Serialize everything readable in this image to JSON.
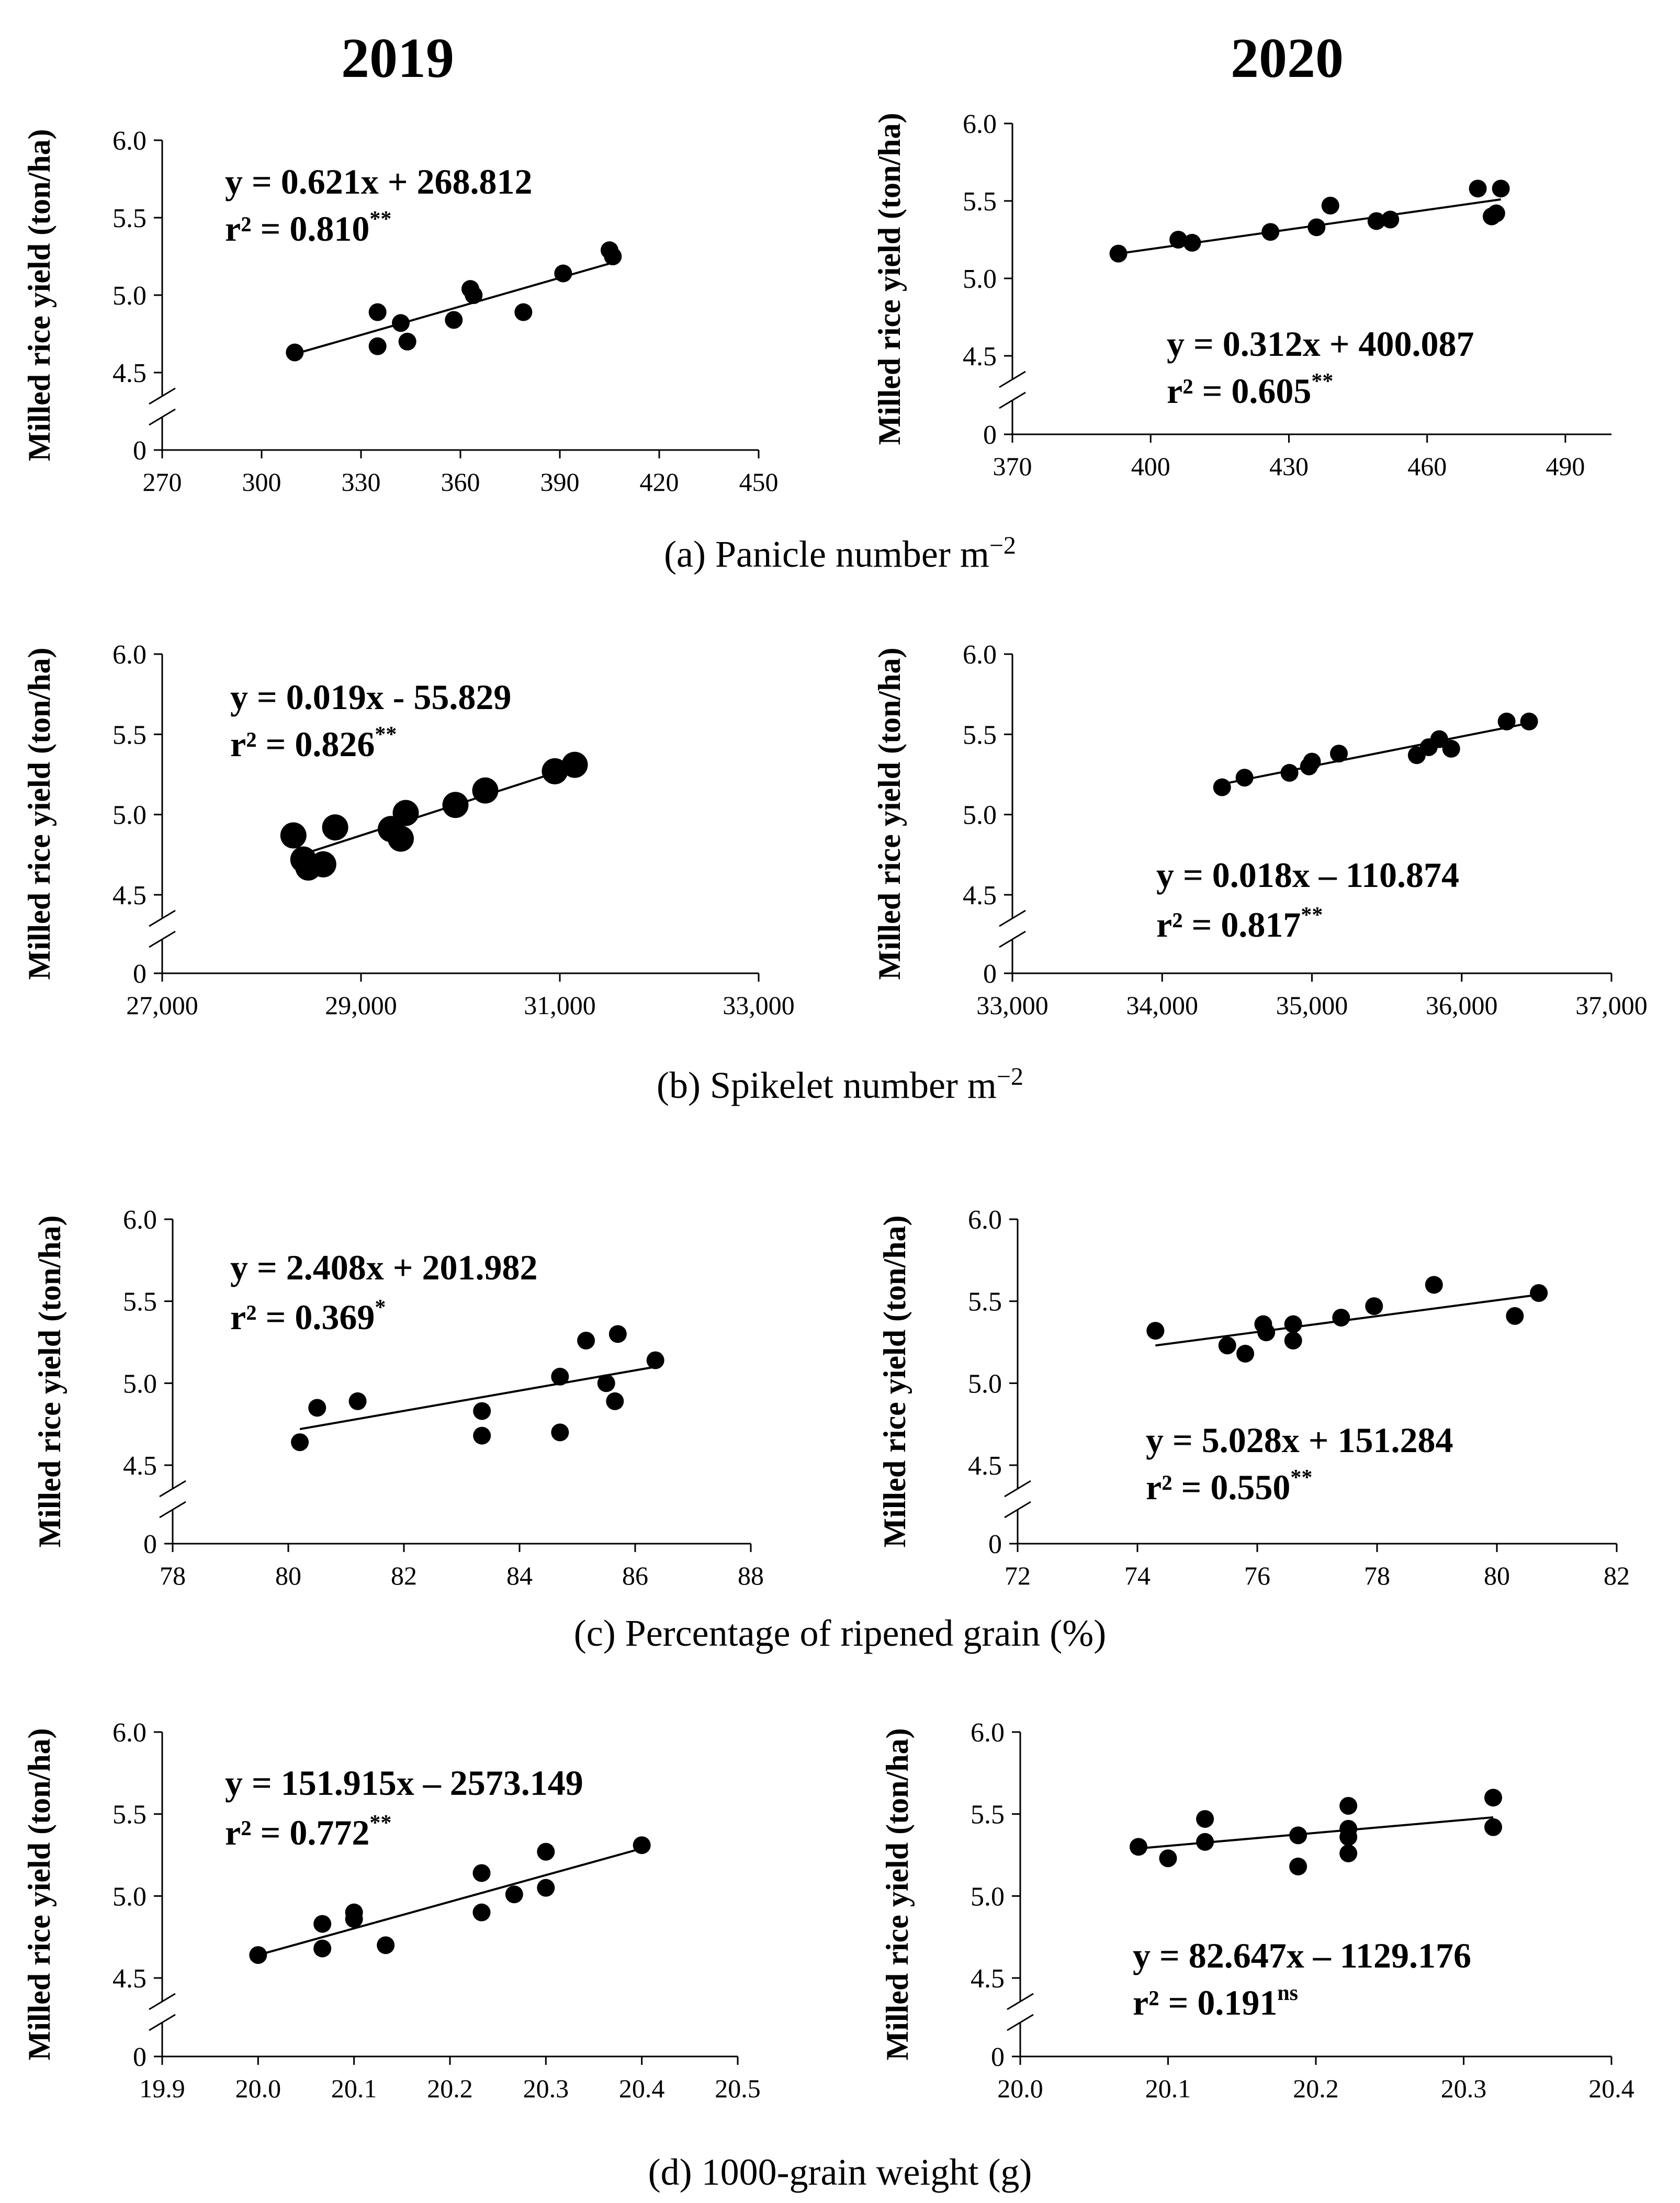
{
  "headers": {
    "left": "2019",
    "right": "2020"
  },
  "captions": {
    "a": "(a) Panicle number m",
    "a_sup": "−2",
    "b": "(b) Spikelet number m",
    "b_sup": "−2",
    "c": "(c) Percentage of ripened grain (%)",
    "d": "(d) 1000-grain weight (g)"
  },
  "chart_data": [
    {
      "id": "a2019",
      "type": "scatter",
      "year": "2019",
      "row": "a",
      "ylabel": "Milled rice yield (ton/ha)",
      "x_ticks": [
        "270",
        "300",
        "330",
        "360",
        "390",
        "420",
        "450"
      ],
      "x_tick_values": [
        270,
        300,
        330,
        360,
        390,
        420,
        450
      ],
      "xlim": [
        270,
        450
      ],
      "y_ticks": [
        "4.5",
        "5.0",
        "5.5",
        "6.0"
      ],
      "y_tick_values": [
        4.5,
        5.0,
        5.5,
        6.0
      ],
      "ylim": [
        4.25,
        6.0
      ],
      "y_zero_label": "0",
      "equation": "y = 0.621x + 268.812",
      "r2_text": "r² = 0.810",
      "significance": "**",
      "annotation_position": "top-left",
      "point_size": "normal",
      "x": [
        310,
        335,
        335,
        342,
        344,
        358,
        363,
        364,
        379,
        391,
        405,
        406
      ],
      "y": [
        4.63,
        4.67,
        4.89,
        4.82,
        4.7,
        4.84,
        5.04,
        5.0,
        4.89,
        5.14,
        5.29,
        5.25
      ],
      "trend": [
        [
          310,
          4.62
        ],
        [
          406,
          5.21
        ]
      ]
    },
    {
      "id": "a2020",
      "type": "scatter",
      "year": "2020",
      "row": "a",
      "ylabel": "Milled rice yield (ton/ha)",
      "x_ticks": [
        "370",
        "400",
        "430",
        "460",
        "490"
      ],
      "x_tick_values": [
        370,
        400,
        430,
        460,
        490
      ],
      "xlim": [
        370,
        500
      ],
      "y_ticks": [
        "4.5",
        "5.0",
        "5.5",
        "6.0"
      ],
      "y_tick_values": [
        4.5,
        5.0,
        5.5,
        6.0
      ],
      "ylim": [
        4.25,
        6.0
      ],
      "y_zero_label": "0",
      "equation": "y = 0.312x + 400.087",
      "r2_text": "r² = 0.605",
      "significance": "**",
      "annotation_position": "bottom-right",
      "point_size": "normal",
      "x": [
        393,
        406,
        409,
        426,
        436,
        439,
        449,
        452,
        471,
        474,
        475,
        476
      ],
      "y": [
        5.16,
        5.25,
        5.23,
        5.3,
        5.33,
        5.47,
        5.37,
        5.38,
        5.58,
        5.4,
        5.42,
        5.58
      ],
      "trend": [
        [
          393,
          5.16
        ],
        [
          476,
          5.51
        ]
      ]
    },
    {
      "id": "b2019",
      "type": "scatter",
      "year": "2019",
      "row": "b",
      "ylabel": "Milled rice yield (ton/ha)",
      "x_ticks": [
        "27,000",
        "29,000",
        "31,000",
        "33,000"
      ],
      "x_tick_values": [
        27000,
        29000,
        31000,
        33000
      ],
      "xlim": [
        27000,
        33000
      ],
      "y_ticks": [
        "4.5",
        "5.0",
        "5.5",
        "6.0"
      ],
      "y_tick_values": [
        4.5,
        5.0,
        5.5,
        6.0
      ],
      "ylim": [
        4.25,
        6.0
      ],
      "y_zero_label": "0",
      "equation": "y = 0.019x - 55.829",
      "r2_text": "r² = 0.826",
      "significance": "**",
      "annotation_position": "top-left",
      "point_size": "large",
      "x": [
        28320,
        28420,
        28470,
        28620,
        28740,
        29300,
        29400,
        29450,
        29950,
        30250,
        30950,
        31150
      ],
      "y": [
        4.87,
        4.72,
        4.67,
        4.69,
        4.92,
        4.91,
        4.85,
        5.01,
        5.06,
        5.15,
        5.27,
        5.31
      ],
      "trend": [
        [
          28350,
          4.74
        ],
        [
          31150,
          5.3
        ]
      ]
    },
    {
      "id": "b2020",
      "type": "scatter",
      "year": "2020",
      "row": "b",
      "ylabel": "Milled rice yield (ton/ha)",
      "x_ticks": [
        "33,000",
        "34,000",
        "35,000",
        "36,000",
        "37,000"
      ],
      "x_tick_values": [
        33000,
        34000,
        35000,
        36000,
        37000
      ],
      "xlim": [
        33000,
        37000
      ],
      "y_ticks": [
        "4.5",
        "5.0",
        "5.5",
        "6.0"
      ],
      "y_tick_values": [
        4.5,
        5.0,
        5.5,
        6.0
      ],
      "ylim": [
        4.25,
        6.0
      ],
      "y_zero_label": "0",
      "equation": "y = 0.018x – 110.874",
      "r2_text": "r² = 0.817",
      "significance": "**",
      "annotation_position": "bottom-right",
      "point_size": "normal",
      "x": [
        34400,
        34550,
        34850,
        34980,
        35000,
        35180,
        35700,
        35780,
        35850,
        35930,
        36300,
        36450
      ],
      "y": [
        5.17,
        5.23,
        5.26,
        5.3,
        5.33,
        5.38,
        5.37,
        5.42,
        5.47,
        5.41,
        5.58,
        5.58
      ],
      "trend": [
        [
          34400,
          5.19
        ],
        [
          36450,
          5.57
        ]
      ]
    },
    {
      "id": "c2019",
      "type": "scatter",
      "year": "2019",
      "row": "c",
      "ylabel": "Milled rice yield (ton/ha)",
      "x_ticks": [
        "78",
        "80",
        "82",
        "84",
        "86",
        "88"
      ],
      "x_tick_values": [
        78,
        80,
        82,
        84,
        86,
        88
      ],
      "xlim": [
        78,
        88
      ],
      "y_ticks": [
        "4.5",
        "5.0",
        "5.5",
        "6.0"
      ],
      "y_tick_values": [
        4.5,
        5.0,
        5.5,
        6.0
      ],
      "ylim": [
        4.25,
        6.0
      ],
      "y_zero_label": "0",
      "equation": "y = 2.408x + 201.982",
      "r2_text": "r² = 0.369",
      "significance": "*",
      "annotation_position": "top-left",
      "point_size": "normal",
      "x": [
        80.2,
        80.5,
        81.2,
        83.35,
        83.35,
        84.7,
        84.7,
        85.15,
        85.5,
        85.65,
        85.7,
        86.35
      ],
      "y": [
        4.64,
        4.85,
        4.89,
        4.83,
        4.68,
        5.04,
        4.7,
        5.26,
        5.0,
        4.89,
        5.3,
        5.14
      ],
      "trend": [
        [
          80.2,
          4.72
        ],
        [
          86.35,
          5.1
        ]
      ]
    },
    {
      "id": "c2020",
      "type": "scatter",
      "year": "2020",
      "row": "c",
      "ylabel": "Milled rice yield (ton/ha)",
      "x_ticks": [
        "72",
        "74",
        "76",
        "78",
        "80",
        "82"
      ],
      "x_tick_values": [
        72,
        74,
        76,
        78,
        80,
        82
      ],
      "xlim": [
        72,
        82
      ],
      "y_ticks": [
        "4.5",
        "5.0",
        "5.5",
        "6.0"
      ],
      "y_tick_values": [
        4.5,
        5.0,
        5.5,
        6.0
      ],
      "ylim": [
        4.25,
        6.0
      ],
      "y_zero_label": "0",
      "equation": "y = 5.028x + 151.284",
      "r2_text": "r² = 0.550",
      "significance": "**",
      "annotation_position": "bottom-right",
      "point_size": "normal",
      "x": [
        74.3,
        75.5,
        75.8,
        76.1,
        76.15,
        76.6,
        76.6,
        77.4,
        77.95,
        78.95,
        80.3,
        80.7
      ],
      "y": [
        5.32,
        5.23,
        5.18,
        5.36,
        5.31,
        5.36,
        5.26,
        5.4,
        5.47,
        5.6,
        5.41,
        5.55
      ],
      "trend": [
        [
          74.3,
          5.23
        ],
        [
          80.7,
          5.54
        ]
      ]
    },
    {
      "id": "d2019",
      "type": "scatter",
      "year": "2019",
      "row": "d",
      "ylabel": "Milled rice yield (ton/ha)",
      "x_ticks": [
        "19.9",
        "20.0",
        "20.1",
        "20.2",
        "20.3",
        "20.4",
        "20.5"
      ],
      "x_tick_values": [
        19.9,
        20.0,
        20.1,
        20.2,
        20.3,
        20.4,
        20.5
      ],
      "xlim": [
        19.9,
        20.5
      ],
      "y_ticks": [
        "4.5",
        "5.0",
        "5.5",
        "6.0"
      ],
      "y_tick_values": [
        4.5,
        5.0,
        5.5,
        6.0
      ],
      "ylim": [
        4.25,
        6.0
      ],
      "y_zero_label": "0",
      "equation": "y = 151.915x – 2573.149",
      "r2_text": "r² = 0.772",
      "significance": "**",
      "annotation_position": "top-left",
      "point_size": "normal",
      "x": [
        20.0,
        20.067,
        20.067,
        20.1,
        20.1,
        20.133,
        20.233,
        20.233,
        20.267,
        20.3,
        20.3,
        20.4
      ],
      "y": [
        4.64,
        4.83,
        4.68,
        4.9,
        4.86,
        4.7,
        5.14,
        4.9,
        5.01,
        5.27,
        5.05,
        5.31
      ],
      "trend": [
        [
          20.0,
          4.64
        ],
        [
          20.4,
          5.29
        ]
      ]
    },
    {
      "id": "d2020",
      "type": "scatter",
      "year": "2020",
      "row": "d",
      "ylabel": "Milled rice yield (ton/ha)",
      "x_ticks": [
        "20.0",
        "20.1",
        "20.2",
        "20.3",
        "20.4"
      ],
      "x_tick_values": [
        20.0,
        20.1,
        20.2,
        20.3,
        20.4
      ],
      "xlim": [
        20.0,
        20.4
      ],
      "y_ticks": [
        "4.5",
        "5.0",
        "5.5",
        "6.0"
      ],
      "y_tick_values": [
        4.5,
        5.0,
        5.5,
        6.0
      ],
      "ylim": [
        4.25,
        6.0
      ],
      "y_zero_label": "0",
      "equation": "y = 82.647x – 1129.176",
      "r2_text": "r² = 0.191",
      "significance": "ns",
      "annotation_position": "bottom-right",
      "point_size": "normal",
      "x": [
        20.08,
        20.1,
        20.125,
        20.125,
        20.188,
        20.188,
        20.222,
        20.222,
        20.222,
        20.222,
        20.32,
        20.32
      ],
      "y": [
        5.3,
        5.23,
        5.33,
        5.47,
        5.37,
        5.18,
        5.55,
        5.41,
        5.36,
        5.26,
        5.6,
        5.42
      ],
      "trend": [
        [
          20.08,
          5.29
        ],
        [
          20.32,
          5.48
        ]
      ]
    }
  ]
}
